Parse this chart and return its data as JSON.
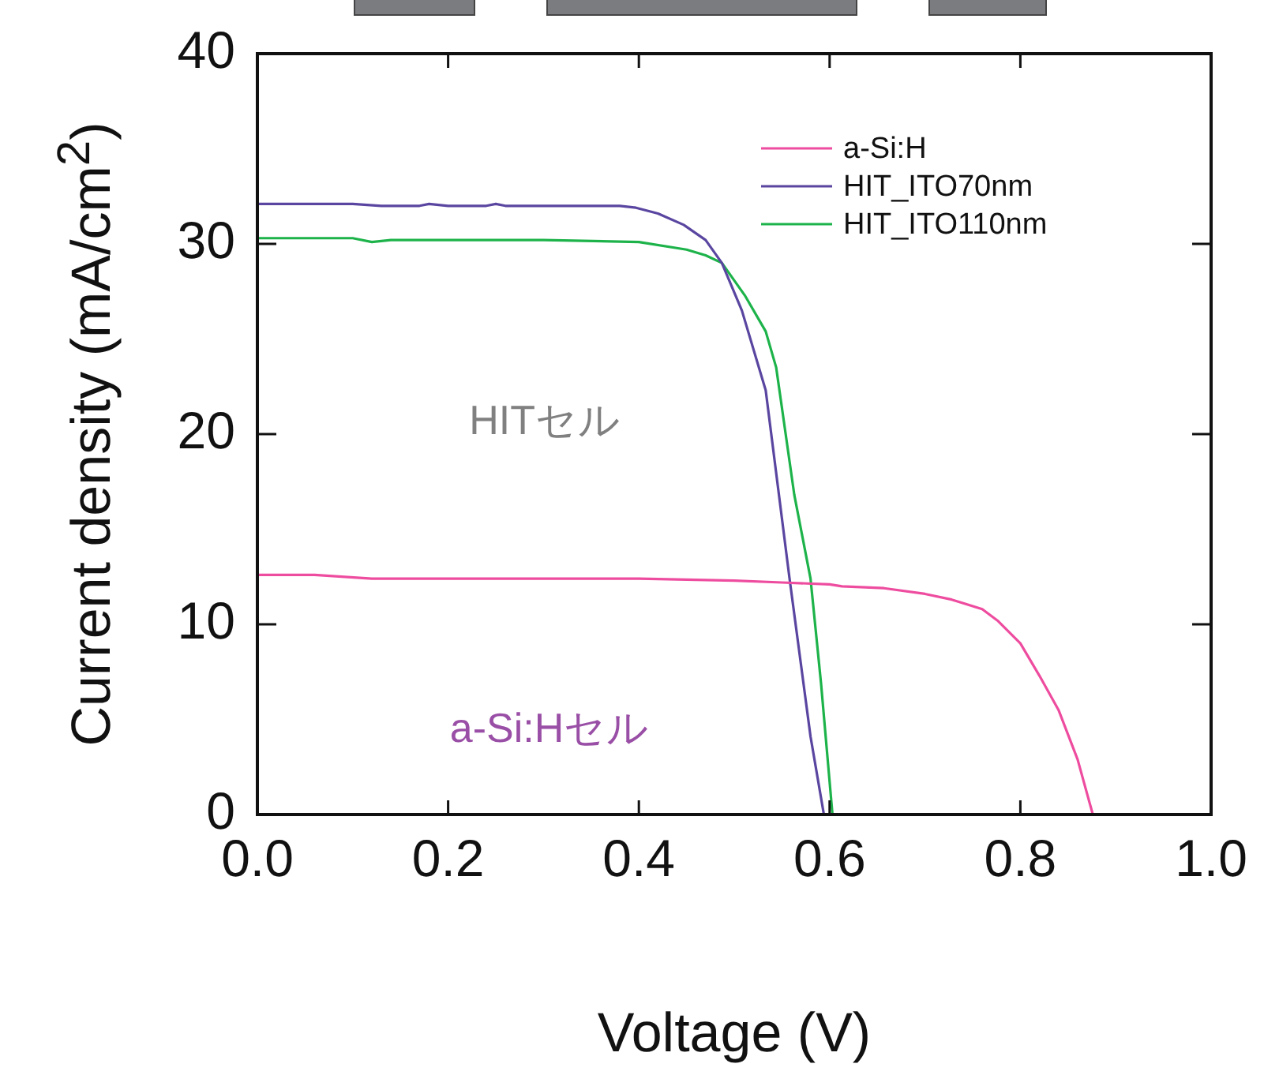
{
  "chart_data": {
    "type": "line",
    "xlabel": "Voltage (V)",
    "ylabel": "Current density (mA/cm$^{2}$)",
    "xlim": [
      0,
      1
    ],
    "xticks": [
      {
        "value": 0,
        "label": "0.0"
      },
      0.2,
      0.4,
      0.6,
      0.8,
      {
        "value": 1,
        "label": "1.0"
      }
    ],
    "ylim": [
      0,
      40
    ],
    "yticks": [
      0,
      10,
      20,
      30,
      40
    ],
    "grid": false,
    "legend": "top right",
    "marker": "none",
    "line_style": "solid",
    "annotations": [
      "HITセル",
      "a-Si:Hセル"
    ],
    "series": [
      {
        "name": "a-Si:H",
        "color": "#ee4c9f",
        "x": [
          0,
          0.06,
          0.12,
          0.2,
          0.3,
          0.4,
          0.5,
          0.55,
          0.6,
          0.613,
          0.657,
          0.7,
          0.728,
          0.76,
          0.776,
          0.8,
          0.82,
          0.84,
          0.86,
          0.876
        ],
        "values": [
          12.6,
          12.6,
          12.4,
          12.4,
          12.4,
          12.4,
          12.3,
          12.2,
          12.1,
          12.0,
          11.9,
          11.6,
          11.3,
          10.8,
          10.2,
          9.0,
          7.3,
          5.5,
          2.9,
          0
        ]
      },
      {
        "name": "HIT_ITO70nm",
        "color": "#5a46a0",
        "x": [
          0,
          0.1,
          0.13,
          0.17,
          0.18,
          0.2,
          0.24,
          0.25,
          0.26,
          0.3,
          0.38,
          0.397,
          0.42,
          0.447,
          0.47,
          0.487,
          0.508,
          0.533,
          0.558,
          0.58,
          0.594
        ],
        "values": [
          32.1,
          32.1,
          32.0,
          32.0,
          32.1,
          32.0,
          32.0,
          32.1,
          32.0,
          32.0,
          32.0,
          31.9,
          31.6,
          31.0,
          30.2,
          29.0,
          26.5,
          22.3,
          12.4,
          4.1,
          0
        ]
      },
      {
        "name": "HIT_ITO110nm",
        "color": "#1db34a",
        "x": [
          0,
          0.1,
          0.12,
          0.14,
          0.2,
          0.25,
          0.3,
          0.4,
          0.45,
          0.47,
          0.487,
          0.511,
          0.533,
          0.544,
          0.563,
          0.58,
          0.591,
          0.603
        ],
        "values": [
          30.3,
          30.3,
          30.1,
          30.2,
          30.2,
          30.2,
          30.2,
          30.1,
          29.7,
          29.4,
          29.0,
          27.3,
          25.4,
          23.5,
          16.8,
          12.4,
          6.9,
          0
        ]
      }
    ]
  }
}
